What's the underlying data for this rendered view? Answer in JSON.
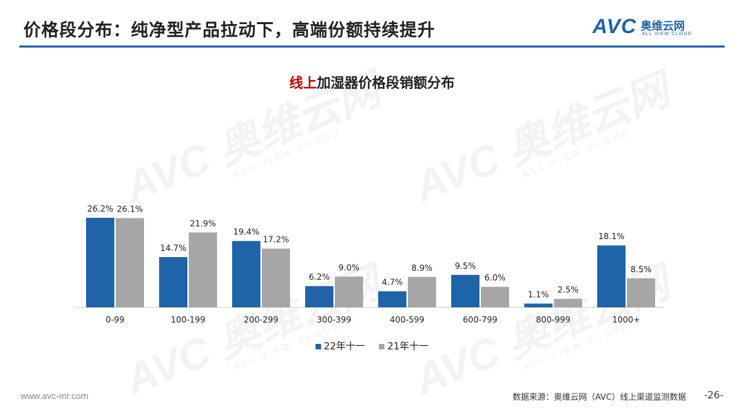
{
  "header": {
    "title": "价格段分布：纯净型产品拉动下，高端份额持续提升",
    "logo_text": "AVC",
    "logo_cn": "奥维云网",
    "logo_en": "ALL VIEW CLOUD"
  },
  "colors": {
    "accent": "#1f63a8",
    "series_22": "#1f63a8",
    "series_21": "#a6a6a6",
    "highlight": "#c00000"
  },
  "watermark": {
    "text": "AVC 奥维云网",
    "sub": "ALL VIEW CLOUD"
  },
  "chart_data": {
    "type": "bar",
    "title_highlight": "线上",
    "title_rest": "加湿器价格段销额分布",
    "categories": [
      "0-99",
      "100-199",
      "200-299",
      "300-399",
      "400-599",
      "600-799",
      "800-999",
      "1000+"
    ],
    "series": [
      {
        "name": "22年十一",
        "values": [
          26.2,
          14.7,
          19.4,
          6.2,
          4.7,
          9.5,
          1.1,
          18.1
        ],
        "labels": [
          "26.2%",
          "14.7%",
          "19.4%",
          "6.2%",
          "4.7%",
          "9.5%",
          "1.1%",
          "18.1%"
        ]
      },
      {
        "name": "21年十一",
        "values": [
          26.1,
          21.9,
          17.2,
          9.0,
          8.9,
          6.0,
          2.5,
          8.5
        ],
        "labels": [
          "26.1%",
          "21.9%",
          "17.2%",
          "9.0%",
          "8.9%",
          "6.0%",
          "2.5%",
          "8.5%"
        ]
      }
    ],
    "unit": "%",
    "xlabel": "",
    "ylabel": "",
    "ylim": [
      0,
      28
    ],
    "legend_position": "bottom"
  },
  "footer": {
    "website": "www.avc-mr.com",
    "source": "数据来源：奥维云网（AVC）线上渠道监测数据",
    "page": "-26-"
  }
}
